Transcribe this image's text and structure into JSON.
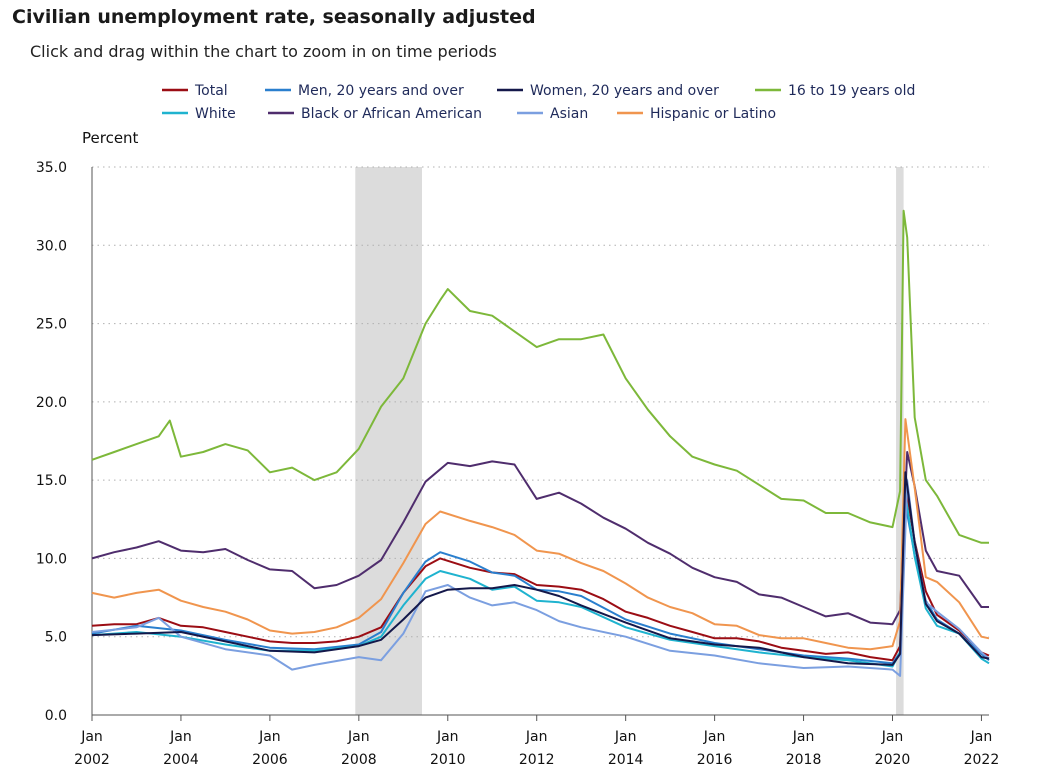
{
  "page": {
    "title": "Civilian unemployment rate, seasonally adjusted",
    "subtitle": "Click and drag within the chart to zoom in on time periods"
  },
  "chart_data": {
    "type": "line",
    "title": "Civilian unemployment rate, seasonally adjusted",
    "xlabel": "",
    "ylabel": "Percent",
    "ylim": [
      0,
      35
    ],
    "xlim": [
      2002.0,
      2022.17
    ],
    "yticks": [
      "0.0",
      "5.0",
      "10.0",
      "15.0",
      "20.0",
      "25.0",
      "30.0",
      "35.0"
    ],
    "xticks": [
      {
        "year": 2002,
        "label_top": "Jan",
        "label_bottom": "2002"
      },
      {
        "year": 2004,
        "label_top": "Jan",
        "label_bottom": "2004"
      },
      {
        "year": 2006,
        "label_top": "Jan",
        "label_bottom": "2006"
      },
      {
        "year": 2008,
        "label_top": "Jan",
        "label_bottom": "2008"
      },
      {
        "year": 2010,
        "label_top": "Jan",
        "label_bottom": "2010"
      },
      {
        "year": 2012,
        "label_top": "Jan",
        "label_bottom": "2012"
      },
      {
        "year": 2014,
        "label_top": "Jan",
        "label_bottom": "2014"
      },
      {
        "year": 2016,
        "label_top": "Jan",
        "label_bottom": "2016"
      },
      {
        "year": 2018,
        "label_top": "Jan",
        "label_bottom": "2018"
      },
      {
        "year": 2020,
        "label_top": "Jan",
        "label_bottom": "2020"
      },
      {
        "year": 2022,
        "label_top": "Jan",
        "label_bottom": "2022"
      }
    ],
    "grid": "horizontal dotted",
    "recessions": [
      {
        "start": 2007.92,
        "end": 2009.42
      },
      {
        "start": 2020.08,
        "end": 2020.25
      }
    ],
    "series": [
      {
        "name": "Total",
        "color": "#9b0d14",
        "x": [
          2002.0,
          2002.5,
          2003.0,
          2003.5,
          2004.0,
          2004.5,
          2005.0,
          2005.5,
          2006.0,
          2006.5,
          2007.0,
          2007.5,
          2008.0,
          2008.5,
          2009.0,
          2009.5,
          2009.83,
          2010.5,
          2011.0,
          2011.5,
          2012.0,
          2012.5,
          2013.0,
          2013.5,
          2014.0,
          2014.5,
          2015.0,
          2015.5,
          2016.0,
          2016.5,
          2017.0,
          2017.5,
          2018.0,
          2018.5,
          2019.0,
          2019.5,
          2020.0,
          2020.17,
          2020.29,
          2020.5,
          2020.75,
          2021.0,
          2021.5,
          2022.0,
          2022.17
        ],
        "values": [
          5.7,
          5.8,
          5.8,
          6.2,
          5.7,
          5.6,
          5.3,
          5.0,
          4.7,
          4.6,
          4.6,
          4.7,
          5.0,
          5.6,
          7.8,
          9.5,
          10.0,
          9.4,
          9.1,
          9.0,
          8.3,
          8.2,
          8.0,
          7.4,
          6.6,
          6.2,
          5.7,
          5.3,
          4.9,
          4.9,
          4.7,
          4.3,
          4.1,
          3.9,
          4.0,
          3.7,
          3.5,
          4.4,
          14.7,
          11.1,
          7.9,
          6.4,
          5.4,
          4.0,
          3.8
        ]
      },
      {
        "name": "Men, 20 years and over",
        "color": "#2a7fce",
        "x": [
          2002.0,
          2003.0,
          2004.0,
          2005.0,
          2006.0,
          2007.0,
          2008.0,
          2008.5,
          2009.0,
          2009.5,
          2009.83,
          2010.5,
          2011.0,
          2011.5,
          2012.0,
          2012.5,
          2013.0,
          2014.0,
          2015.0,
          2016.0,
          2017.0,
          2018.0,
          2019.0,
          2020.0,
          2020.17,
          2020.29,
          2020.5,
          2020.75,
          2021.0,
          2021.5,
          2022.0,
          2022.17
        ],
        "values": [
          5.2,
          5.7,
          5.4,
          4.8,
          4.3,
          4.2,
          4.5,
          5.3,
          7.8,
          9.8,
          10.4,
          9.8,
          9.1,
          8.9,
          8.0,
          7.9,
          7.6,
          6.1,
          5.2,
          4.6,
          4.2,
          3.8,
          3.6,
          3.3,
          4.0,
          13.5,
          10.2,
          7.3,
          6.1,
          5.2,
          3.9,
          3.5
        ]
      },
      {
        "name": "Women, 20 years and over",
        "color": "#14184a",
        "x": [
          2002.0,
          2003.0,
          2004.0,
          2005.0,
          2006.0,
          2007.0,
          2008.0,
          2008.5,
          2009.0,
          2009.5,
          2010.0,
          2010.5,
          2011.0,
          2011.5,
          2012.0,
          2012.5,
          2013.0,
          2014.0,
          2015.0,
          2016.0,
          2017.0,
          2018.0,
          2019.0,
          2020.0,
          2020.17,
          2020.29,
          2020.5,
          2020.75,
          2021.0,
          2021.5,
          2022.0,
          2022.17
        ],
        "values": [
          5.1,
          5.2,
          5.3,
          4.7,
          4.1,
          4.0,
          4.4,
          4.8,
          6.1,
          7.5,
          8.0,
          8.1,
          8.1,
          8.3,
          8.0,
          7.6,
          7.0,
          5.9,
          4.9,
          4.5,
          4.3,
          3.7,
          3.3,
          3.2,
          3.9,
          15.5,
          11.0,
          7.1,
          6.0,
          5.2,
          3.7,
          3.6
        ]
      },
      {
        "name": "16 to 19 years old",
        "color": "#7db83a",
        "x": [
          2002.0,
          2002.5,
          2003.0,
          2003.5,
          2003.75,
          2004.0,
          2004.5,
          2005.0,
          2005.5,
          2006.0,
          2006.5,
          2007.0,
          2007.5,
          2008.0,
          2008.5,
          2009.0,
          2009.5,
          2009.83,
          2010.0,
          2010.5,
          2011.0,
          2011.5,
          2012.0,
          2012.5,
          2013.0,
          2013.5,
          2014.0,
          2014.5,
          2015.0,
          2015.5,
          2016.0,
          2016.5,
          2017.0,
          2017.5,
          2018.0,
          2018.5,
          2019.0,
          2019.5,
          2020.0,
          2020.17,
          2020.25,
          2020.33,
          2020.5,
          2020.75,
          2021.0,
          2021.5,
          2022.0,
          2022.17
        ],
        "values": [
          16.3,
          16.8,
          17.3,
          17.8,
          18.8,
          16.5,
          16.8,
          17.3,
          16.9,
          15.5,
          15.8,
          15.0,
          15.5,
          17.0,
          19.7,
          21.5,
          25.0,
          26.5,
          27.2,
          25.8,
          25.5,
          24.5,
          23.5,
          24.0,
          24.0,
          24.3,
          21.5,
          19.5,
          17.8,
          16.5,
          16.0,
          15.6,
          14.7,
          13.8,
          13.7,
          12.9,
          12.9,
          12.3,
          12.0,
          14.3,
          32.2,
          30.5,
          19.0,
          15.0,
          14.0,
          11.5,
          11.0,
          11.0
        ]
      },
      {
        "name": "White",
        "color": "#1fb3cf",
        "x": [
          2002.0,
          2003.0,
          2004.0,
          2005.0,
          2006.0,
          2007.0,
          2008.0,
          2008.5,
          2009.0,
          2009.5,
          2009.83,
          2010.5,
          2011.0,
          2011.5,
          2012.0,
          2012.5,
          2013.0,
          2014.0,
          2015.0,
          2016.0,
          2017.0,
          2018.0,
          2019.0,
          2020.0,
          2020.17,
          2020.29,
          2020.5,
          2020.75,
          2021.0,
          2021.5,
          2022.0,
          2022.17
        ],
        "values": [
          5.1,
          5.3,
          5.0,
          4.5,
          4.1,
          4.1,
          4.4,
          5.0,
          7.0,
          8.7,
          9.2,
          8.7,
          8.0,
          8.2,
          7.3,
          7.2,
          6.9,
          5.6,
          4.8,
          4.4,
          4.0,
          3.7,
          3.5,
          3.1,
          4.0,
          14.1,
          10.1,
          6.8,
          5.7,
          5.2,
          3.6,
          3.3
        ]
      },
      {
        "name": "Black or African American",
        "color": "#4f2d6d",
        "x": [
          2002.0,
          2002.5,
          2003.0,
          2003.5,
          2004.0,
          2004.5,
          2005.0,
          2005.5,
          2006.0,
          2006.5,
          2007.0,
          2007.5,
          2008.0,
          2008.5,
          2009.0,
          2009.5,
          2010.0,
          2010.5,
          2011.0,
          2011.5,
          2012.0,
          2012.5,
          2013.0,
          2013.5,
          2014.0,
          2014.5,
          2015.0,
          2015.5,
          2016.0,
          2016.5,
          2017.0,
          2017.5,
          2018.0,
          2018.5,
          2019.0,
          2019.5,
          2020.0,
          2020.17,
          2020.33,
          2020.5,
          2020.75,
          2021.0,
          2021.5,
          2022.0,
          2022.17
        ],
        "values": [
          10.0,
          10.4,
          10.7,
          11.1,
          10.5,
          10.4,
          10.6,
          9.9,
          9.3,
          9.2,
          8.1,
          8.3,
          8.9,
          9.9,
          12.3,
          14.9,
          16.1,
          15.9,
          16.2,
          16.0,
          13.8,
          14.2,
          13.5,
          12.6,
          11.9,
          11.0,
          10.3,
          9.4,
          8.8,
          8.5,
          7.7,
          7.5,
          6.9,
          6.3,
          6.5,
          5.9,
          5.8,
          6.7,
          16.8,
          14.6,
          10.5,
          9.2,
          8.9,
          6.9,
          6.9
        ]
      },
      {
        "name": "Asian",
        "color": "#7b9fe0",
        "x": [
          2002.0,
          2003.0,
          2003.5,
          2004.0,
          2005.0,
          2006.0,
          2006.5,
          2007.0,
          2008.0,
          2008.5,
          2009.0,
          2009.5,
          2010.0,
          2010.5,
          2011.0,
          2011.5,
          2012.0,
          2012.5,
          2013.0,
          2014.0,
          2015.0,
          2016.0,
          2017.0,
          2018.0,
          2019.0,
          2020.0,
          2020.17,
          2020.33,
          2020.5,
          2020.75,
          2021.0,
          2021.5,
          2022.0,
          2022.17
        ],
        "values": [
          5.3,
          5.6,
          6.2,
          5.0,
          4.2,
          3.8,
          2.9,
          3.2,
          3.7,
          3.5,
          5.2,
          7.9,
          8.3,
          7.5,
          7.0,
          7.2,
          6.7,
          6.0,
          5.6,
          5.0,
          4.1,
          3.8,
          3.3,
          3.0,
          3.1,
          2.9,
          2.5,
          15.0,
          11.0,
          7.2,
          6.6,
          5.5,
          4.0,
          3.6
        ]
      },
      {
        "name": "Hispanic or Latino",
        "color": "#f0954e",
        "x": [
          2002.0,
          2002.5,
          2003.0,
          2003.5,
          2004.0,
          2004.5,
          2005.0,
          2005.5,
          2006.0,
          2006.5,
          2007.0,
          2007.5,
          2008.0,
          2008.5,
          2009.0,
          2009.5,
          2009.83,
          2010.5,
          2011.0,
          2011.5,
          2012.0,
          2012.5,
          2013.0,
          2013.5,
          2014.0,
          2014.5,
          2015.0,
          2015.5,
          2016.0,
          2016.5,
          2017.0,
          2017.5,
          2018.0,
          2018.5,
          2019.0,
          2019.5,
          2020.0,
          2020.17,
          2020.29,
          2020.5,
          2020.75,
          2021.0,
          2021.5,
          2022.0,
          2022.17
        ],
        "values": [
          7.8,
          7.5,
          7.8,
          8.0,
          7.3,
          6.9,
          6.6,
          6.1,
          5.4,
          5.2,
          5.3,
          5.6,
          6.2,
          7.4,
          9.7,
          12.2,
          13.0,
          12.4,
          12.0,
          11.5,
          10.5,
          10.3,
          9.7,
          9.2,
          8.4,
          7.5,
          6.9,
          6.5,
          5.8,
          5.7,
          5.1,
          4.9,
          4.9,
          4.6,
          4.3,
          4.2,
          4.4,
          6.0,
          18.9,
          14.5,
          8.8,
          8.5,
          7.2,
          5.0,
          4.9
        ]
      }
    ]
  }
}
